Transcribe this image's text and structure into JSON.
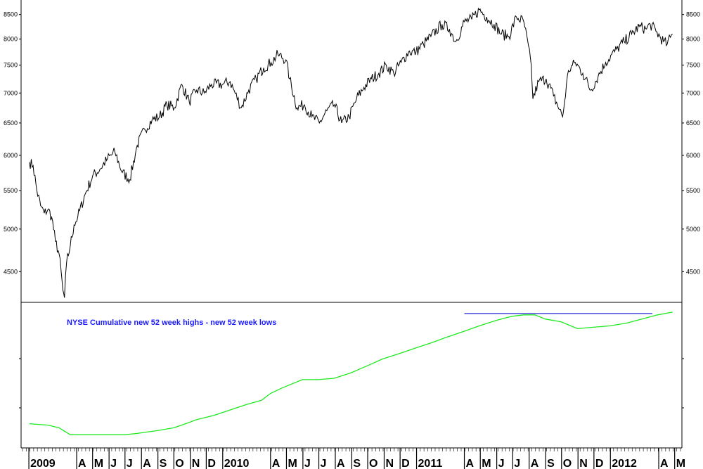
{
  "chart_data": [
    {
      "type": "line",
      "title": "",
      "ylabel": "",
      "y_scale": "log",
      "ylim": [
        4200,
        8750
      ],
      "yticks": [
        4500,
        5000,
        5500,
        6000,
        6500,
        7000,
        7500,
        8000,
        8500
      ],
      "ytick_labels": [
        "4500",
        "5000",
        "5500",
        "6000",
        "6500",
        "7000",
        "7500",
        "8000",
        "8500"
      ],
      "line_color": "#000000",
      "series": [
        {
          "x": [
            "2009-01-02",
            "2009-01-09",
            "2009-01-16",
            "2009-01-23",
            "2009-01-30",
            "2009-02-06",
            "2009-02-13",
            "2009-02-20",
            "2009-02-27",
            "2009-03-06",
            "2009-03-09",
            "2009-03-13",
            "2009-03-20",
            "2009-03-27",
            "2009-04-03",
            "2009-04-17",
            "2009-05-01",
            "2009-05-15",
            "2009-05-29",
            "2009-06-12",
            "2009-06-26",
            "2009-07-10",
            "2009-07-24",
            "2009-08-07",
            "2009-08-21",
            "2009-09-04",
            "2009-09-18",
            "2009-10-02",
            "2009-10-16",
            "2009-10-30",
            "2009-11-13",
            "2009-11-27",
            "2009-12-11",
            "2009-12-31",
            "2010-01-15",
            "2010-02-05",
            "2010-02-19",
            "2010-03-05",
            "2010-03-19",
            "2010-04-02",
            "2010-04-15",
            "2010-04-30",
            "2010-05-07",
            "2010-05-21",
            "2010-06-04",
            "2010-06-18",
            "2010-07-02",
            "2010-07-16",
            "2010-07-30",
            "2010-08-13",
            "2010-08-27",
            "2010-09-10",
            "2010-09-24",
            "2010-10-08",
            "2010-10-22",
            "2010-11-05",
            "2010-11-19",
            "2010-12-03",
            "2010-12-17",
            "2010-12-31",
            "2011-01-14",
            "2011-01-28",
            "2011-02-18",
            "2011-03-04",
            "2011-03-16",
            "2011-04-01",
            "2011-04-15",
            "2011-04-29",
            "2011-05-13",
            "2011-05-27",
            "2011-06-10",
            "2011-06-24",
            "2011-07-08",
            "2011-07-22",
            "2011-08-05",
            "2011-08-08",
            "2011-08-19",
            "2011-09-02",
            "2011-09-16",
            "2011-10-03",
            "2011-10-14",
            "2011-10-27",
            "2011-11-10",
            "2011-11-25",
            "2011-12-09",
            "2011-12-23",
            "2012-01-13",
            "2012-01-27",
            "2012-02-10",
            "2012-02-24",
            "2012-03-09",
            "2012-03-16",
            "2012-03-27",
            "2012-04-10",
            "2012-04-17",
            "2012-04-27"
          ],
          "values": [
            5900,
            5850,
            5500,
            5300,
            5200,
            5250,
            5150,
            4850,
            4700,
            4300,
            4220,
            4600,
            4800,
            5050,
            5150,
            5450,
            5700,
            5800,
            5950,
            6050,
            5750,
            5650,
            6150,
            6400,
            6550,
            6600,
            6800,
            6750,
            7150,
            6850,
            7050,
            7000,
            7150,
            7150,
            7200,
            6750,
            7050,
            7250,
            7450,
            7550,
            7700,
            7600,
            7250,
            6750,
            6800,
            6600,
            6500,
            6700,
            6800,
            6500,
            6600,
            6900,
            7100,
            7250,
            7350,
            7500,
            7350,
            7550,
            7750,
            7750,
            7900,
            8050,
            8300,
            8200,
            7950,
            8350,
            8400,
            8600,
            8450,
            8300,
            8100,
            8050,
            8450,
            8350,
            7500,
            6900,
            7200,
            7250,
            6950,
            6600,
            7400,
            7550,
            7350,
            7050,
            7300,
            7550,
            7800,
            7950,
            8100,
            8250,
            8200,
            8300,
            8150,
            7950,
            7900,
            8100
          ]
        }
      ]
    },
    {
      "type": "line",
      "title": "NYSE Cumulative new 52 week highs - new 52 week lows",
      "ylabel": "",
      "ylim": [
        0,
        100
      ],
      "line_color": "#1ee81e",
      "reference_line": {
        "y": 96,
        "x_start": "2011-04-01",
        "x_end": "2012-03-20",
        "color": "#2a2ad8"
      },
      "series": [
        {
          "x": [
            "2009-01-02",
            "2009-02-06",
            "2009-02-27",
            "2009-03-20",
            "2009-04-30",
            "2009-05-29",
            "2009-06-30",
            "2009-07-24",
            "2009-08-31",
            "2009-09-30",
            "2009-10-16",
            "2009-11-13",
            "2009-12-15",
            "2010-01-15",
            "2010-02-15",
            "2010-03-15",
            "2010-04-01",
            "2010-04-23",
            "2010-05-31",
            "2010-06-30",
            "2010-07-30",
            "2010-08-31",
            "2010-09-30",
            "2010-10-29",
            "2010-11-30",
            "2010-12-31",
            "2011-01-31",
            "2011-02-28",
            "2011-03-31",
            "2011-04-29",
            "2011-05-31",
            "2011-06-30",
            "2011-07-22",
            "2011-08-12",
            "2011-08-31",
            "2011-09-30",
            "2011-10-31",
            "2011-11-30",
            "2011-12-30",
            "2012-01-31",
            "2012-02-29",
            "2012-03-30",
            "2012-04-27"
          ],
          "values": [
            16,
            15,
            13,
            8,
            8,
            8,
            8,
            9,
            11,
            13,
            15,
            19,
            22,
            26,
            30,
            33,
            38,
            42,
            48,
            48,
            49,
            53,
            58,
            63,
            67,
            71,
            75,
            79,
            83,
            87,
            91,
            94,
            95,
            95,
            92,
            90,
            85,
            86,
            87,
            89,
            92,
            95,
            97
          ]
        }
      ]
    }
  ],
  "x_axis": {
    "labels": [
      "2009",
      "A",
      "M",
      "J",
      "J",
      "A",
      "S",
      "O",
      "N",
      "D",
      "2010",
      "A",
      "M",
      "J",
      "J",
      "A",
      "S",
      "O",
      "N",
      "D",
      "2011",
      "A",
      "M",
      "J",
      "J",
      "A",
      "S",
      "O",
      "N",
      "D",
      "2012",
      "A",
      "M"
    ],
    "label_dates": [
      "2009-01-01",
      "2009-04-01",
      "2009-05-01",
      "2009-06-01",
      "2009-07-01",
      "2009-08-01",
      "2009-09-01",
      "2009-10-01",
      "2009-11-01",
      "2009-12-01",
      "2010-01-01",
      "2010-04-01",
      "2010-05-01",
      "2010-06-01",
      "2010-07-01",
      "2010-08-01",
      "2010-09-01",
      "2010-10-01",
      "2010-11-01",
      "2010-12-01",
      "2011-01-01",
      "2011-04-01",
      "2011-05-01",
      "2011-06-01",
      "2011-07-01",
      "2011-08-01",
      "2011-09-01",
      "2011-10-01",
      "2011-11-01",
      "2011-12-01",
      "2012-01-01",
      "2012-04-01",
      "2012-05-01"
    ],
    "x_range": [
      "2008-12-20",
      "2012-05-12"
    ]
  }
}
